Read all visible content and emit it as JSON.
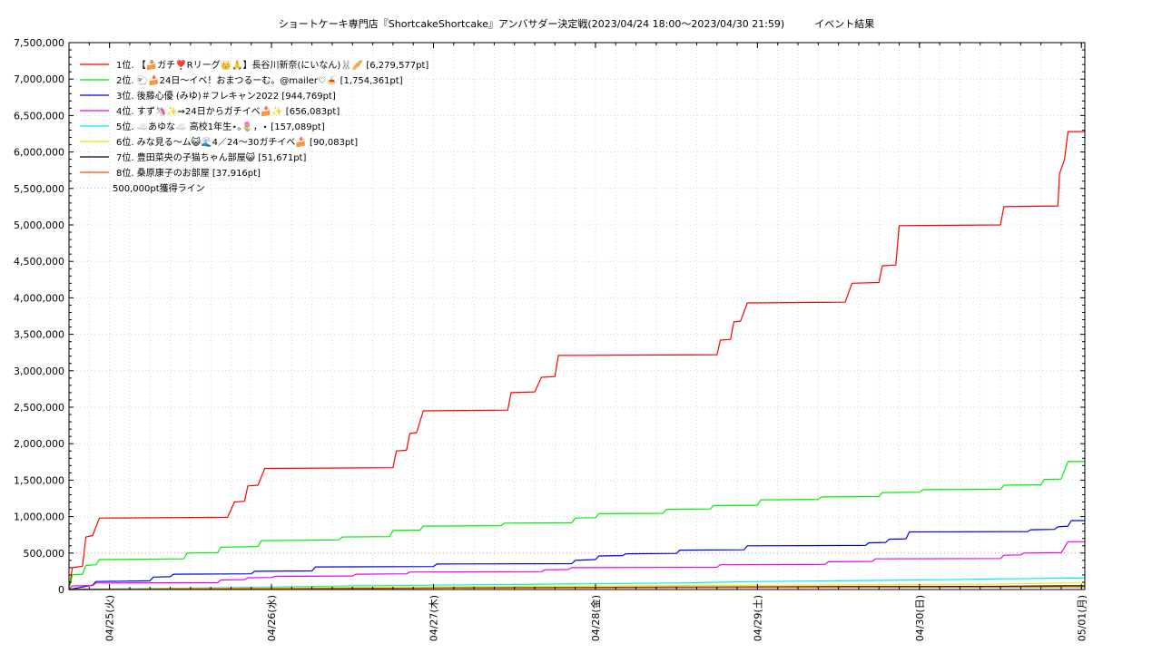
{
  "chart_data": {
    "type": "line",
    "title": "ショートケーキ専門店『ShortcakeShortcake』アンバサダー決定戦(2023/04/24 18:00～2023/04/30 21:59)　　　イベント結果",
    "xlabel": "",
    "ylabel": "",
    "x_range": [
      "2023-04-24 18:00",
      "2023-05-01 00:30"
    ],
    "ylim": [
      0,
      7500000
    ],
    "y_ticks": [
      "0",
      "500,000",
      "1,000,000",
      "1,500,000",
      "2,000,000",
      "2,500,000",
      "3,000,000",
      "3,500,000",
      "4,000,000",
      "4,500,000",
      "5,000,000",
      "5,500,000",
      "6,000,000",
      "6,500,000",
      "7,000,000",
      "7,500,000"
    ],
    "x_ticks": [
      {
        "date": "2023-04-25 00:00",
        "label": "04/25(火)"
      },
      {
        "date": "2023-04-26 00:00",
        "label": "04/26(水)"
      },
      {
        "date": "2023-04-27 00:00",
        "label": "04/27(木)"
      },
      {
        "date": "2023-04-28 00:00",
        "label": "04/28(金)"
      },
      {
        "date": "2023-04-29 00:00",
        "label": "04/29(土)"
      },
      {
        "date": "2023-04-30 00:00",
        "label": "04/30(日)"
      },
      {
        "date": "2023-05-01 00:00",
        "label": "05/01(月)"
      }
    ],
    "grid": true,
    "legend_position": "top-left",
    "reference_line": {
      "name": "500,000pt獲得ライン",
      "value": 500000,
      "color": "#ff9999"
    },
    "series": [
      {
        "name": "1位. 【🍰ガチ❣️Rリーグ👑🙏】長谷川新奈(にいなん)🐰🥖 [6,279,577pt]",
        "color": "#ff0000",
        "points": [
          [
            "2023-04-24 18:00",
            0
          ],
          [
            "2023-04-24 18:30",
            300000
          ],
          [
            "2023-04-24 20:00",
            320000
          ],
          [
            "2023-04-24 20:30",
            720000
          ],
          [
            "2023-04-24 21:30",
            740000
          ],
          [
            "2023-04-24 22:30",
            980000
          ],
          [
            "2023-04-25 17:30",
            990000
          ],
          [
            "2023-04-25 18:30",
            1200000
          ],
          [
            "2023-04-25 20:00",
            1210000
          ],
          [
            "2023-04-25 20:30",
            1420000
          ],
          [
            "2023-04-25 22:00",
            1430000
          ],
          [
            "2023-04-25 23:00",
            1660000
          ],
          [
            "2023-04-26 18:00",
            1670000
          ],
          [
            "2023-04-26 18:30",
            1900000
          ],
          [
            "2023-04-26 20:00",
            1910000
          ],
          [
            "2023-04-26 20:30",
            2140000
          ],
          [
            "2023-04-26 21:30",
            2150000
          ],
          [
            "2023-04-26 22:30",
            2450000
          ],
          [
            "2023-04-27 11:00",
            2460000
          ],
          [
            "2023-04-27 11:30",
            2700000
          ],
          [
            "2023-04-27 15:00",
            2710000
          ],
          [
            "2023-04-27 16:00",
            2910000
          ],
          [
            "2023-04-27 18:00",
            2920000
          ],
          [
            "2023-04-27 18:30",
            3210000
          ],
          [
            "2023-04-28 18:00",
            3220000
          ],
          [
            "2023-04-28 18:30",
            3420000
          ],
          [
            "2023-04-28 20:00",
            3430000
          ],
          [
            "2023-04-28 20:30",
            3670000
          ],
          [
            "2023-04-28 21:30",
            3680000
          ],
          [
            "2023-04-28 22:30",
            3930000
          ],
          [
            "2023-04-29 13:00",
            3940000
          ],
          [
            "2023-04-29 14:00",
            4200000
          ],
          [
            "2023-04-29 18:00",
            4210000
          ],
          [
            "2023-04-29 18:30",
            4440000
          ],
          [
            "2023-04-29 20:30",
            4450000
          ],
          [
            "2023-04-29 21:00",
            4990000
          ],
          [
            "2023-04-30 12:00",
            5000000
          ],
          [
            "2023-04-30 12:30",
            5250000
          ],
          [
            "2023-04-30 20:30",
            5260000
          ],
          [
            "2023-04-30 20:45",
            5700000
          ],
          [
            "2023-04-30 21:30",
            5900000
          ],
          [
            "2023-04-30 22:00",
            6279577
          ],
          [
            "2023-05-01 00:30",
            6279577
          ]
        ]
      },
      {
        "name": "2位. 🐑🍰24日〜イベ！おまつるーむ。@mailer♡🍝 [1,754,361pt]",
        "color": "#00ee00",
        "points": [
          [
            "2023-04-24 18:00",
            0
          ],
          [
            "2023-04-24 18:30",
            200000
          ],
          [
            "2023-04-24 20:00",
            210000
          ],
          [
            "2023-04-24 20:30",
            330000
          ],
          [
            "2023-04-24 22:00",
            340000
          ],
          [
            "2023-04-24 22:30",
            410000
          ],
          [
            "2023-04-25 11:00",
            420000
          ],
          [
            "2023-04-25 11:30",
            500000
          ],
          [
            "2023-04-25 16:00",
            505000
          ],
          [
            "2023-04-25 16:30",
            580000
          ],
          [
            "2023-04-25 22:00",
            590000
          ],
          [
            "2023-04-25 22:30",
            670000
          ],
          [
            "2023-04-26 10:00",
            680000
          ],
          [
            "2023-04-26 10:30",
            720000
          ],
          [
            "2023-04-26 17:30",
            725000
          ],
          [
            "2023-04-26 18:00",
            810000
          ],
          [
            "2023-04-26 22:00",
            815000
          ],
          [
            "2023-04-26 22:30",
            870000
          ],
          [
            "2023-04-27 10:00",
            875000
          ],
          [
            "2023-04-27 10:30",
            910000
          ],
          [
            "2023-04-27 20:30",
            915000
          ],
          [
            "2023-04-27 21:00",
            980000
          ],
          [
            "2023-04-28 00:00",
            985000
          ],
          [
            "2023-04-28 00:30",
            1040000
          ],
          [
            "2023-04-28 10:00",
            1045000
          ],
          [
            "2023-04-28 10:30",
            1100000
          ],
          [
            "2023-04-28 17:00",
            1105000
          ],
          [
            "2023-04-28 17:30",
            1150000
          ],
          [
            "2023-04-29 00:00",
            1155000
          ],
          [
            "2023-04-29 00:30",
            1230000
          ],
          [
            "2023-04-29 09:00",
            1235000
          ],
          [
            "2023-04-29 09:30",
            1270000
          ],
          [
            "2023-04-29 18:00",
            1275000
          ],
          [
            "2023-04-29 18:30",
            1330000
          ],
          [
            "2023-04-30 00:00",
            1335000
          ],
          [
            "2023-04-30 00:30",
            1370000
          ],
          [
            "2023-04-30 12:00",
            1375000
          ],
          [
            "2023-04-30 12:30",
            1430000
          ],
          [
            "2023-04-30 18:00",
            1435000
          ],
          [
            "2023-04-30 18:30",
            1510000
          ],
          [
            "2023-04-30 21:00",
            1515000
          ],
          [
            "2023-04-30 22:00",
            1754361
          ],
          [
            "2023-05-01 00:30",
            1754361
          ]
        ]
      },
      {
        "name": "3位. 後藤心優 (みゆ)＃フレキャン2022 [944,769pt]",
        "color": "#0000ee",
        "points": [
          [
            "2023-04-24 18:00",
            0
          ],
          [
            "2023-04-24 21:30",
            60000
          ],
          [
            "2023-04-24 22:00",
            110000
          ],
          [
            "2023-04-25 06:00",
            120000
          ],
          [
            "2023-04-25 06:30",
            170000
          ],
          [
            "2023-04-25 09:00",
            175000
          ],
          [
            "2023-04-25 09:30",
            210000
          ],
          [
            "2023-04-25 21:00",
            215000
          ],
          [
            "2023-04-25 21:30",
            250000
          ],
          [
            "2023-04-26 06:00",
            255000
          ],
          [
            "2023-04-26 06:30",
            310000
          ],
          [
            "2023-04-27 00:00",
            315000
          ],
          [
            "2023-04-27 00:30",
            350000
          ],
          [
            "2023-04-27 20:30",
            355000
          ],
          [
            "2023-04-27 21:00",
            400000
          ],
          [
            "2023-04-28 00:00",
            410000
          ],
          [
            "2023-04-28 00:30",
            460000
          ],
          [
            "2023-04-28 04:00",
            465000
          ],
          [
            "2023-04-28 04:30",
            490000
          ],
          [
            "2023-04-28 12:00",
            495000
          ],
          [
            "2023-04-28 12:30",
            540000
          ],
          [
            "2023-04-28 22:00",
            545000
          ],
          [
            "2023-04-28 22:30",
            600000
          ],
          [
            "2023-04-29 16:00",
            605000
          ],
          [
            "2023-04-29 16:30",
            640000
          ],
          [
            "2023-04-29 19:00",
            645000
          ],
          [
            "2023-04-29 19:30",
            690000
          ],
          [
            "2023-04-29 22:00",
            695000
          ],
          [
            "2023-04-29 22:30",
            790000
          ],
          [
            "2023-04-30 16:00",
            795000
          ],
          [
            "2023-04-30 16:30",
            820000
          ],
          [
            "2023-04-30 20:00",
            825000
          ],
          [
            "2023-04-30 20:30",
            860000
          ],
          [
            "2023-04-30 22:00",
            870000
          ],
          [
            "2023-04-30 22:30",
            944769
          ],
          [
            "2023-05-01 00:30",
            944769
          ]
        ]
      },
      {
        "name": "4位. すず🦄✨⇒24日からガチイベ🍰✨ [656,083pt]",
        "color": "#ee00ee",
        "points": [
          [
            "2023-04-24 18:00",
            0
          ],
          [
            "2023-04-24 18:30",
            50000
          ],
          [
            "2023-04-24 21:30",
            55000
          ],
          [
            "2023-04-24 22:00",
            90000
          ],
          [
            "2023-04-25 16:00",
            95000
          ],
          [
            "2023-04-25 16:30",
            130000
          ],
          [
            "2023-04-25 20:00",
            135000
          ],
          [
            "2023-04-25 20:30",
            160000
          ],
          [
            "2023-04-26 00:00",
            165000
          ],
          [
            "2023-04-26 00:30",
            180000
          ],
          [
            "2023-04-26 12:00",
            185000
          ],
          [
            "2023-04-26 12:30",
            210000
          ],
          [
            "2023-04-26 20:00",
            215000
          ],
          [
            "2023-04-26 20:30",
            240000
          ],
          [
            "2023-04-27 16:00",
            245000
          ],
          [
            "2023-04-27 16:30",
            270000
          ],
          [
            "2023-04-27 20:00",
            275000
          ],
          [
            "2023-04-27 20:30",
            300000
          ],
          [
            "2023-04-28 18:00",
            305000
          ],
          [
            "2023-04-28 18:30",
            340000
          ],
          [
            "2023-04-29 10:00",
            345000
          ],
          [
            "2023-04-29 10:30",
            380000
          ],
          [
            "2023-04-29 17:00",
            385000
          ],
          [
            "2023-04-29 17:30",
            420000
          ],
          [
            "2023-04-30 12:00",
            425000
          ],
          [
            "2023-04-30 12:30",
            470000
          ],
          [
            "2023-04-30 15:00",
            475000
          ],
          [
            "2023-04-30 15:30",
            500000
          ],
          [
            "2023-04-30 21:00",
            505000
          ],
          [
            "2023-04-30 22:00",
            656083
          ],
          [
            "2023-05-01 00:30",
            656083
          ]
        ]
      },
      {
        "name": "5位. ☁️あゆな☁️ 高校1年生⋆｡🌷，⋆ [157,089pt]",
        "color": "#00eeee",
        "points": [
          [
            "2023-04-24 18:00",
            0
          ],
          [
            "2023-04-25 12:00",
            20000
          ],
          [
            "2023-04-26 12:00",
            50000
          ],
          [
            "2023-04-27 12:00",
            70000
          ],
          [
            "2023-04-28 12:00",
            90000
          ],
          [
            "2023-04-29 00:00",
            110000
          ],
          [
            "2023-04-29 12:00",
            120000
          ],
          [
            "2023-04-30 00:00",
            130000
          ],
          [
            "2023-04-30 12:00",
            145000
          ],
          [
            "2023-04-30 22:00",
            157089
          ],
          [
            "2023-05-01 00:30",
            157089
          ]
        ]
      },
      {
        "name": "6位. みな見る〜ム😺🌊4／24〜30ガチイベ🍰 [90,083pt]",
        "color": "#eeee00",
        "points": [
          [
            "2023-04-24 18:00",
            0
          ],
          [
            "2023-04-25 12:00",
            15000
          ],
          [
            "2023-04-26 12:00",
            30000
          ],
          [
            "2023-04-27 12:00",
            45000
          ],
          [
            "2023-04-28 12:00",
            55000
          ],
          [
            "2023-04-29 12:00",
            65000
          ],
          [
            "2023-04-30 12:00",
            75000
          ],
          [
            "2023-04-30 22:00",
            90083
          ],
          [
            "2023-05-01 00:30",
            90083
          ]
        ]
      },
      {
        "name": "7位. 豊田菜央の子猫ちゃん部屋😺 [51,671pt]",
        "color": "#000000",
        "points": [
          [
            "2023-04-24 18:00",
            0
          ],
          [
            "2023-04-25 12:00",
            5000
          ],
          [
            "2023-04-26 12:00",
            15000
          ],
          [
            "2023-04-27 12:00",
            25000
          ],
          [
            "2023-04-28 12:00",
            32000
          ],
          [
            "2023-04-29 12:00",
            38000
          ],
          [
            "2023-04-30 12:00",
            44000
          ],
          [
            "2023-04-30 22:00",
            51671
          ],
          [
            "2023-05-01 00:30",
            51671
          ]
        ]
      },
      {
        "name": "8位. 桑原康子のお部屋 [37,916pt]",
        "color": "#ee5500",
        "points": [
          [
            "2023-04-24 18:00",
            0
          ],
          [
            "2023-04-25 12:00",
            8000
          ],
          [
            "2023-04-26 12:00",
            15000
          ],
          [
            "2023-04-27 12:00",
            21000
          ],
          [
            "2023-04-28 12:00",
            26000
          ],
          [
            "2023-04-29 12:00",
            30000
          ],
          [
            "2023-04-30 12:00",
            34000
          ],
          [
            "2023-04-30 22:00",
            37916
          ],
          [
            "2023-05-01 00:30",
            37916
          ]
        ]
      }
    ]
  }
}
